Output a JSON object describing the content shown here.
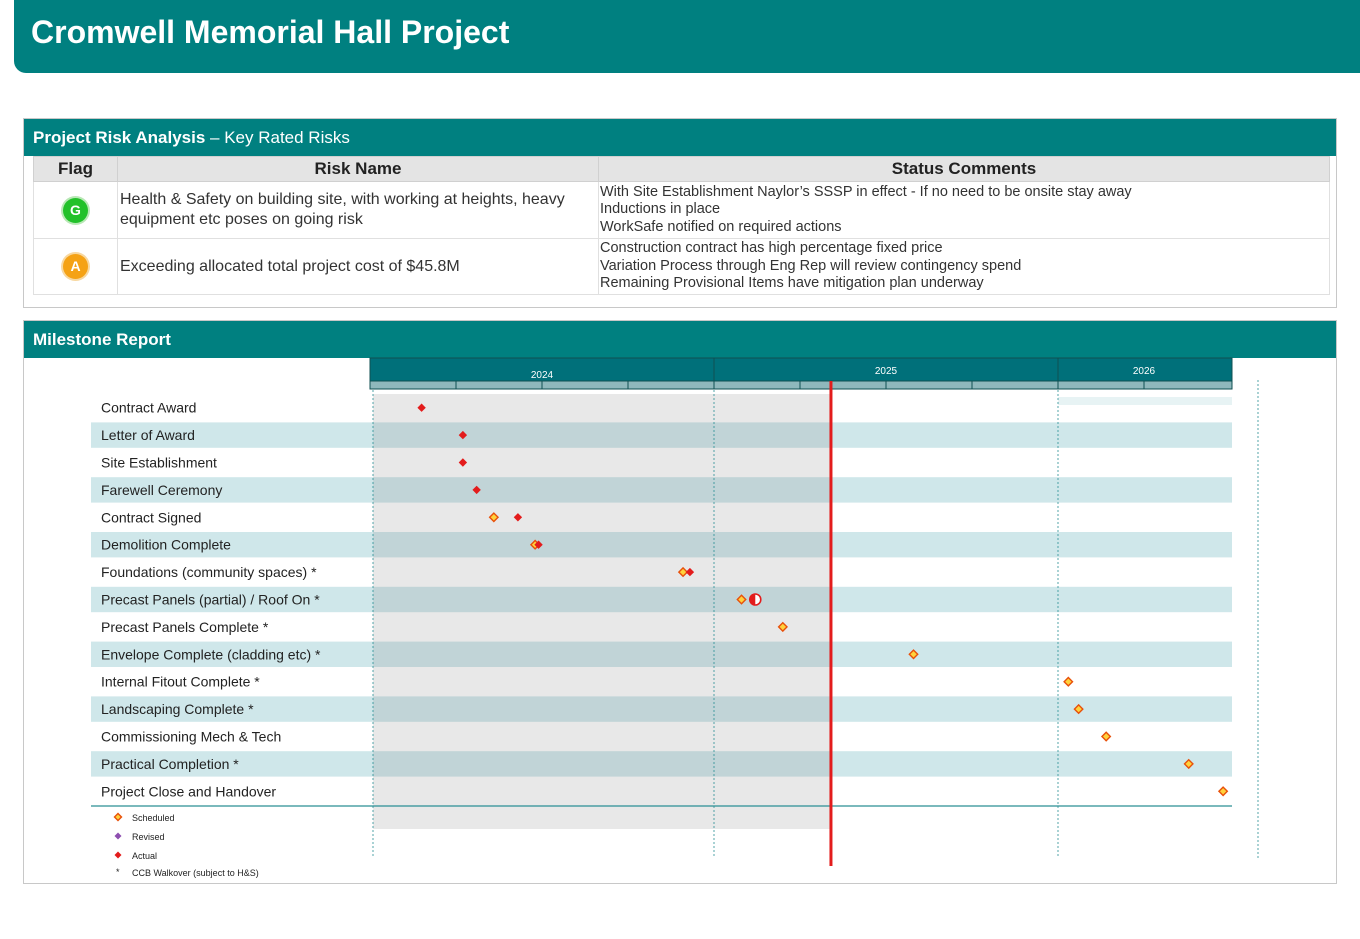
{
  "header": {
    "title": "Cromwell Memorial Hall Project"
  },
  "risk": {
    "heading_bold": "Project Risk Analysis",
    "heading_rest": " – Key Rated Risks",
    "columns": {
      "flag": "Flag",
      "name": "Risk Name",
      "status": "Status Comments"
    },
    "rows": [
      {
        "flag": "G",
        "flag_color": "#22c12a",
        "name": "Health & Safety on building site, with working at heights, heavy equipment etc poses on going risk",
        "status": [
          "With Site Establishment Naylor’s SSSP in effect - If no need to be onsite stay away",
          "Inductions in place",
          "WorkSafe notified on required actions"
        ]
      },
      {
        "flag": "A",
        "flag_color": "#f5a215",
        "name": "Exceeding allocated total project cost of $45.8M",
        "status": [
          "Construction contract has high percentage fixed price",
          "Variation Process through Eng Rep will review contingency spend",
          "Remaining Provisional Items have mitigation plan underway"
        ]
      }
    ]
  },
  "milestone": {
    "heading": "Milestone Report",
    "years": [
      "2024",
      "2025",
      "2026"
    ],
    "today": 2025.34,
    "items": [
      {
        "label": "Contract Award",
        "actual": 2024.15
      },
      {
        "label": "Letter of Award",
        "actual": 2024.27
      },
      {
        "label": "Site Establishment",
        "actual": 2024.27
      },
      {
        "label": "Farewell Ceremony",
        "actual": 2024.31
      },
      {
        "label": "Contract Signed",
        "scheduled": 2024.36,
        "actual": 2024.43
      },
      {
        "label": "Demolition Complete",
        "scheduled": 2024.48,
        "actual": 2024.49
      },
      {
        "label": "Foundations (community spaces) *",
        "scheduled": 2024.91,
        "actual": 2024.93
      },
      {
        "label": "Precast Panels (partial) / Roof On *",
        "scheduled": 2025.08,
        "in_progress": 2025.12
      },
      {
        "label": "Precast Panels Complete *",
        "scheduled": 2025.2
      },
      {
        "label": "Envelope Complete (cladding etc) *",
        "scheduled": 2025.58
      },
      {
        "label": "Internal Fitout Complete *",
        "scheduled": 2026.03
      },
      {
        "label": "Landscaping Complete *",
        "scheduled": 2026.06
      },
      {
        "label": "Commissioning Mech & Tech",
        "scheduled": 2026.14
      },
      {
        "label": "Practical Completion *",
        "scheduled": 2026.38
      },
      {
        "label": "Project Close and Handover",
        "scheduled": 2026.48
      }
    ],
    "legend": [
      {
        "key": "scheduled",
        "label": "Scheduled"
      },
      {
        "key": "revised",
        "label": "Revised"
      },
      {
        "key": "actual",
        "label": "Actual"
      },
      {
        "key": "asterisk",
        "label": "CCB Walkover (subject to H&S)"
      }
    ],
    "colors": {
      "scheduled_stroke": "#e8500a",
      "scheduled_fill": "#ffd23c",
      "revised": "#8e4fb0",
      "actual": "#e31c1c",
      "today_line": "#e31c1c"
    }
  }
}
